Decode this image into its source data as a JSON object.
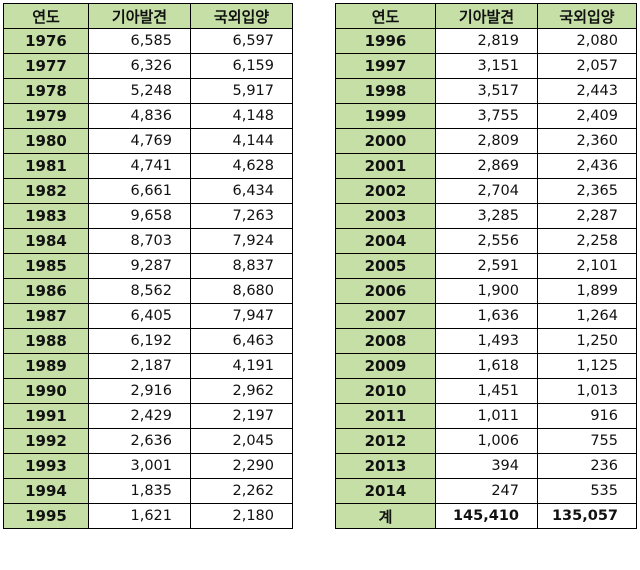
{
  "headers": {
    "year": "연도",
    "found": "기아발견",
    "adopted": "국외입양"
  },
  "left_rows": [
    {
      "year": "1976",
      "found": "6,585",
      "adopted": "6,597"
    },
    {
      "year": "1977",
      "found": "6,326",
      "adopted": "6,159"
    },
    {
      "year": "1978",
      "found": "5,248",
      "adopted": "5,917"
    },
    {
      "year": "1979",
      "found": "4,836",
      "adopted": "4,148"
    },
    {
      "year": "1980",
      "found": "4,769",
      "adopted": "4,144"
    },
    {
      "year": "1981",
      "found": "4,741",
      "adopted": "4,628"
    },
    {
      "year": "1982",
      "found": "6,661",
      "adopted": "6,434"
    },
    {
      "year": "1983",
      "found": "9,658",
      "adopted": "7,263"
    },
    {
      "year": "1984",
      "found": "8,703",
      "adopted": "7,924"
    },
    {
      "year": "1985",
      "found": "9,287",
      "adopted": "8,837"
    },
    {
      "year": "1986",
      "found": "8,562",
      "adopted": "8,680"
    },
    {
      "year": "1987",
      "found": "6,405",
      "adopted": "7,947"
    },
    {
      "year": "1988",
      "found": "6,192",
      "adopted": "6,463"
    },
    {
      "year": "1989",
      "found": "2,187",
      "adopted": "4,191"
    },
    {
      "year": "1990",
      "found": "2,916",
      "adopted": "2,962"
    },
    {
      "year": "1991",
      "found": "2,429",
      "adopted": "2,197"
    },
    {
      "year": "1992",
      "found": "2,636",
      "adopted": "2,045"
    },
    {
      "year": "1993",
      "found": "3,001",
      "adopted": "2,290"
    },
    {
      "year": "1994",
      "found": "1,835",
      "adopted": "2,262"
    },
    {
      "year": "1995",
      "found": "1,621",
      "adopted": "2,180"
    }
  ],
  "right_rows": [
    {
      "year": "1996",
      "found": "2,819",
      "adopted": "2,080"
    },
    {
      "year": "1997",
      "found": "3,151",
      "adopted": "2,057"
    },
    {
      "year": "1998",
      "found": "3,517",
      "adopted": "2,443"
    },
    {
      "year": "1999",
      "found": "3,755",
      "adopted": "2,409"
    },
    {
      "year": "2000",
      "found": "2,809",
      "adopted": "2,360"
    },
    {
      "year": "2001",
      "found": "2,869",
      "adopted": "2,436"
    },
    {
      "year": "2002",
      "found": "2,704",
      "adopted": "2,365"
    },
    {
      "year": "2003",
      "found": "3,285",
      "adopted": "2,287"
    },
    {
      "year": "2004",
      "found": "2,556",
      "adopted": "2,258"
    },
    {
      "year": "2005",
      "found": "2,591",
      "adopted": "2,101"
    },
    {
      "year": "2006",
      "found": "1,900",
      "adopted": "1,899"
    },
    {
      "year": "2007",
      "found": "1,636",
      "adopted": "1,264"
    },
    {
      "year": "2008",
      "found": "1,493",
      "adopted": "1,250"
    },
    {
      "year": "2009",
      "found": "1,618",
      "adopted": "1,125"
    },
    {
      "year": "2010",
      "found": "1,451",
      "adopted": "1,013"
    },
    {
      "year": "2011",
      "found": "1,011",
      "adopted": "916"
    },
    {
      "year": "2012",
      "found": "1,006",
      "adopted": "755"
    },
    {
      "year": "2013",
      "found": "394",
      "adopted": "236"
    },
    {
      "year": "2014",
      "found": "247",
      "adopted": "535"
    }
  ],
  "total": {
    "label": "계",
    "found": "145,410",
    "adopted": "135,057"
  },
  "colors": {
    "header_bg": "#c5dfa6",
    "border": "#000000"
  }
}
